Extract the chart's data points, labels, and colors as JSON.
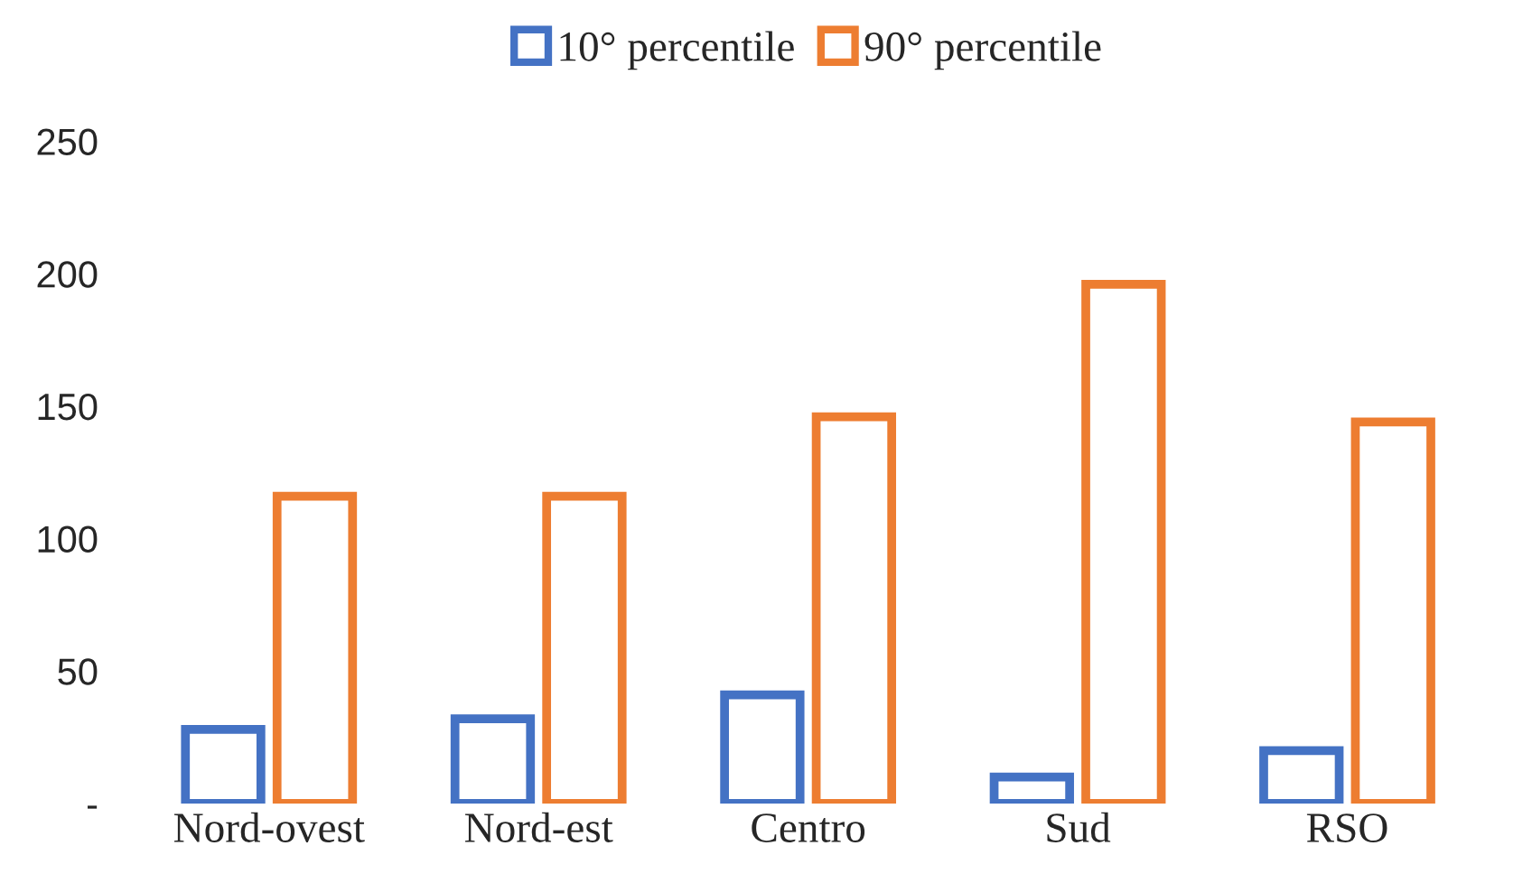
{
  "chart_data": {
    "type": "bar",
    "categories": [
      "Nord-ovest",
      "Nord-est",
      "Centro",
      "Sud",
      "RSO"
    ],
    "series": [
      {
        "name": "10° percentile",
        "color": "#4472c4",
        "values": [
          28,
          32,
          41,
          10,
          20
        ]
      },
      {
        "name": "90° percentile",
        "color": "#ed7d31",
        "values": [
          116,
          116,
          146,
          196,
          144
        ]
      }
    ],
    "ylim": [
      0,
      250
    ],
    "yticks": [
      {
        "value": 0,
        "label": "-"
      },
      50,
      100,
      150,
      200,
      250
    ],
    "grid": false,
    "legend": "top"
  }
}
